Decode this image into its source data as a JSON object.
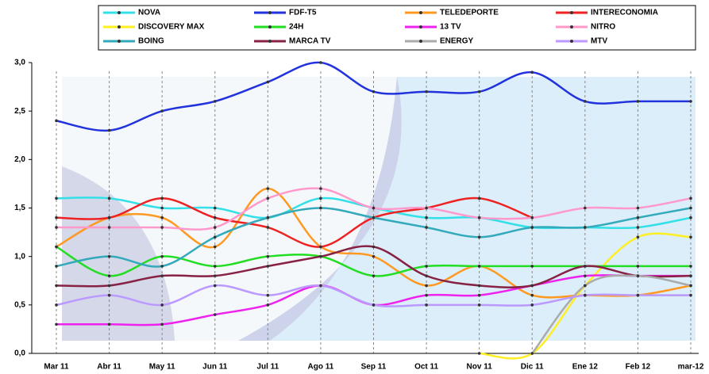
{
  "chart_data": {
    "type": "line",
    "categories": [
      "Mar 11",
      "Abr 11",
      "May 11",
      "Jun 11",
      "Jul 11",
      "Ago 11",
      "Sep 11",
      "Oct 11",
      "Nov 11",
      "Dic 11",
      "Ene 12",
      "Feb 12",
      "mar-12"
    ],
    "ylim": [
      0,
      3
    ],
    "yticks": [
      {
        "value": 0,
        "label": "0,0"
      },
      {
        "value": 0.5,
        "label": "0,5"
      },
      {
        "value": 1,
        "label": "1,0"
      },
      {
        "value": 1.5,
        "label": "1,5"
      },
      {
        "value": 2,
        "label": "2,0"
      },
      {
        "value": 2.5,
        "label": "2,5"
      },
      {
        "value": 3,
        "label": "3,0"
      }
    ],
    "legend": "top",
    "series": [
      {
        "name": "NOVA",
        "color": "#33e0e8",
        "values": [
          1.6,
          1.6,
          1.5,
          1.5,
          1.4,
          1.6,
          1.5,
          1.4,
          1.4,
          1.3,
          1.3,
          1.3,
          1.4
        ]
      },
      {
        "name": "FDF-T5",
        "color": "#2233dd",
        "values": [
          2.4,
          2.3,
          2.5,
          2.6,
          2.8,
          3.0,
          2.7,
          2.7,
          2.7,
          2.9,
          2.6,
          2.6,
          2.6
        ]
      },
      {
        "name": "TELEDEPORTE",
        "color": "#ff9922",
        "values": [
          1.1,
          1.4,
          1.4,
          1.1,
          1.7,
          1.1,
          1.0,
          0.7,
          0.9,
          0.6,
          0.6,
          0.6,
          0.7
        ]
      },
      {
        "name": "INTERECONOMIA",
        "color": "#ee2222",
        "values": [
          1.4,
          1.4,
          1.6,
          1.4,
          1.3,
          1.1,
          1.4,
          1.5,
          1.6,
          1.4,
          null,
          null,
          null
        ]
      },
      {
        "name": "DISCOVERY MAX",
        "color": "#ffee22",
        "values": [
          null,
          null,
          null,
          null,
          null,
          null,
          null,
          null,
          0.0,
          0.0,
          0.7,
          1.2,
          1.2
        ]
      },
      {
        "name": "24H",
        "color": "#22dd22",
        "values": [
          1.1,
          0.8,
          1.0,
          0.9,
          1.0,
          1.0,
          0.8,
          0.9,
          0.9,
          0.9,
          0.9,
          0.9,
          0.9
        ]
      },
      {
        "name": "13 TV",
        "color": "#ee22ee",
        "values": [
          0.3,
          0.3,
          0.3,
          0.4,
          0.5,
          0.7,
          0.5,
          0.6,
          0.6,
          0.7,
          0.8,
          0.8,
          0.8
        ]
      },
      {
        "name": "NITRO",
        "color": "#ff99cc",
        "values": [
          1.3,
          1.3,
          1.3,
          1.3,
          1.6,
          1.7,
          1.5,
          1.5,
          1.4,
          1.4,
          1.5,
          1.5,
          1.6
        ]
      },
      {
        "name": "BOING",
        "color": "#33aabb",
        "values": [
          0.9,
          1.0,
          0.9,
          1.2,
          1.4,
          1.5,
          1.4,
          1.3,
          1.2,
          1.3,
          1.3,
          1.4,
          1.5
        ]
      },
      {
        "name": "MARCA TV",
        "color": "#882244",
        "values": [
          0.7,
          0.7,
          0.8,
          0.8,
          0.9,
          1.0,
          1.1,
          0.8,
          0.7,
          0.7,
          0.9,
          0.8,
          0.8
        ]
      },
      {
        "name": "ENERGY",
        "color": "#aaaaaa",
        "values": [
          null,
          null,
          null,
          null,
          null,
          null,
          null,
          null,
          null,
          0.0,
          0.7,
          0.8,
          0.7
        ]
      },
      {
        "name": "MTV",
        "color": "#bb99ff",
        "values": [
          0.5,
          0.6,
          0.5,
          0.7,
          0.6,
          0.7,
          0.5,
          0.5,
          0.5,
          0.5,
          0.6,
          0.6,
          0.6
        ]
      }
    ]
  }
}
